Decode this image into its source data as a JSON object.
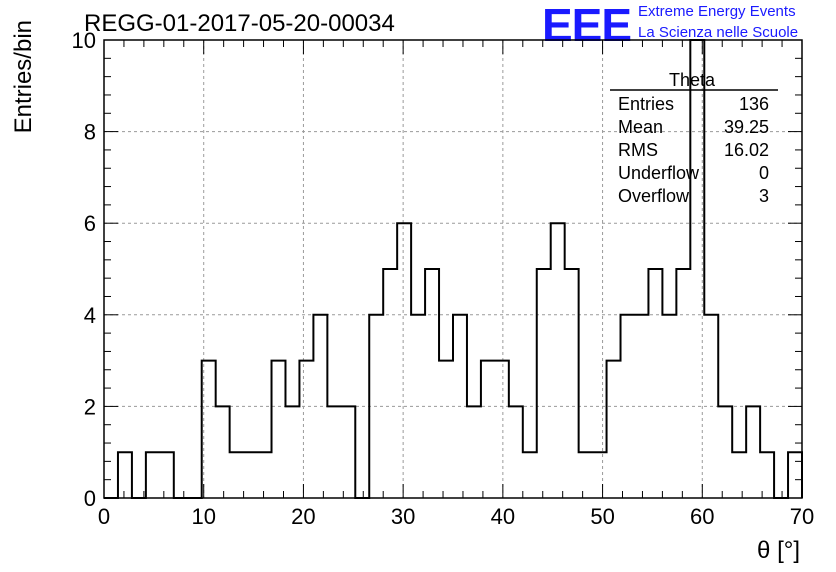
{
  "header": {
    "run_title": "REGG-01-2017-05-20-00034",
    "logo_text": "EEE",
    "logo_line1": "Extreme Energy Events",
    "logo_line2": "La Scienza nelle Scuole"
  },
  "stats_box": {
    "title": "Theta",
    "rows": [
      {
        "label": "Entries",
        "value": "136"
      },
      {
        "label": "Mean",
        "value": "39.25"
      },
      {
        "label": "RMS",
        "value": "16.02"
      },
      {
        "label": "Underflow",
        "value": "0"
      },
      {
        "label": "Overflow",
        "value": "3"
      }
    ]
  },
  "chart_data": {
    "type": "histogram",
    "xlabel": "θ [°]",
    "ylabel": "Entries/bin",
    "xlim": [
      0,
      70
    ],
    "ylim": [
      0,
      10
    ],
    "bin_width": 1.4,
    "bins_start": 0,
    "x_ticks": [
      0,
      10,
      20,
      30,
      40,
      50,
      60,
      70
    ],
    "y_ticks": [
      0,
      2,
      4,
      6,
      8,
      10
    ],
    "grid": true,
    "values": [
      0,
      1,
      0,
      1,
      1,
      0,
      0,
      3,
      2,
      1,
      1,
      1,
      3,
      2,
      3,
      4,
      2,
      2,
      0,
      4,
      5,
      6,
      4,
      5,
      3,
      4,
      2,
      3,
      3,
      2,
      1,
      5,
      6,
      5,
      1,
      1,
      3,
      4,
      4,
      5,
      4,
      5,
      10,
      4,
      2,
      1,
      2,
      1,
      0,
      1
    ]
  },
  "colors": {
    "logo": "#1a1aff",
    "line": "#000000",
    "grid": "#9a9a9a"
  }
}
